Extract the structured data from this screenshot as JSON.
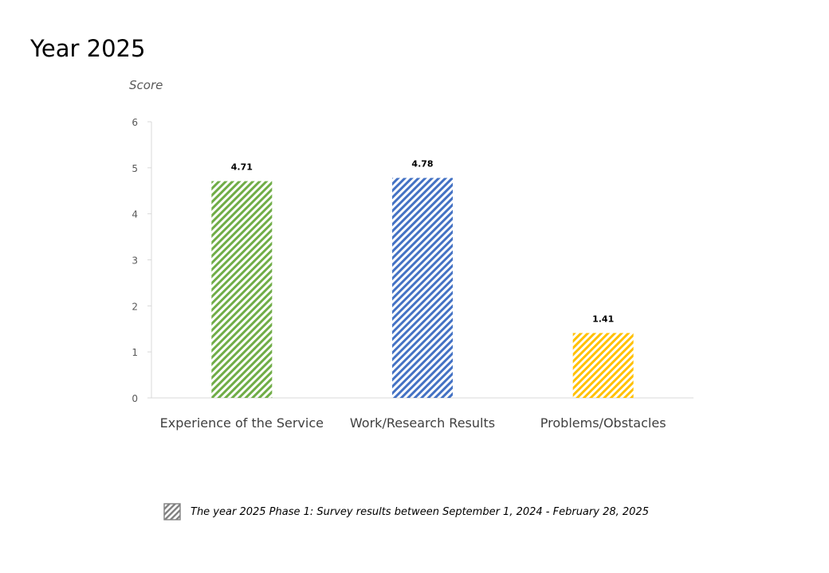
{
  "page": {
    "title": "Year 2025"
  },
  "chart_data": {
    "type": "bar",
    "title": "Year 2025",
    "ylabel": "Score",
    "xlabel": "",
    "categories": [
      "Experience of the Service",
      "Work/Research Results",
      "Problems/Obstacles"
    ],
    "series": [
      {
        "name": "The year 2025 Phase 1: Survey results between September 1, 2024 - February 28, 2025",
        "values": [
          4.71,
          4.78,
          1.41
        ],
        "data_labels": [
          "4.71",
          "4.78",
          "1.41"
        ]
      }
    ],
    "bar_colors": [
      "#70ad47",
      "#4472c4",
      "#ffc000"
    ],
    "bar_pattern": "diagonal-stripes",
    "ylim": [
      0,
      6
    ],
    "yticks": [
      0,
      1,
      2,
      3,
      4,
      5,
      6
    ],
    "grid": false,
    "legend_position": "bottom"
  },
  "legend": {
    "label": "The year 2025 Phase 1: Survey results between September 1, 2024 - February 28, 2025",
    "icon": "striped-swatch-icon"
  }
}
